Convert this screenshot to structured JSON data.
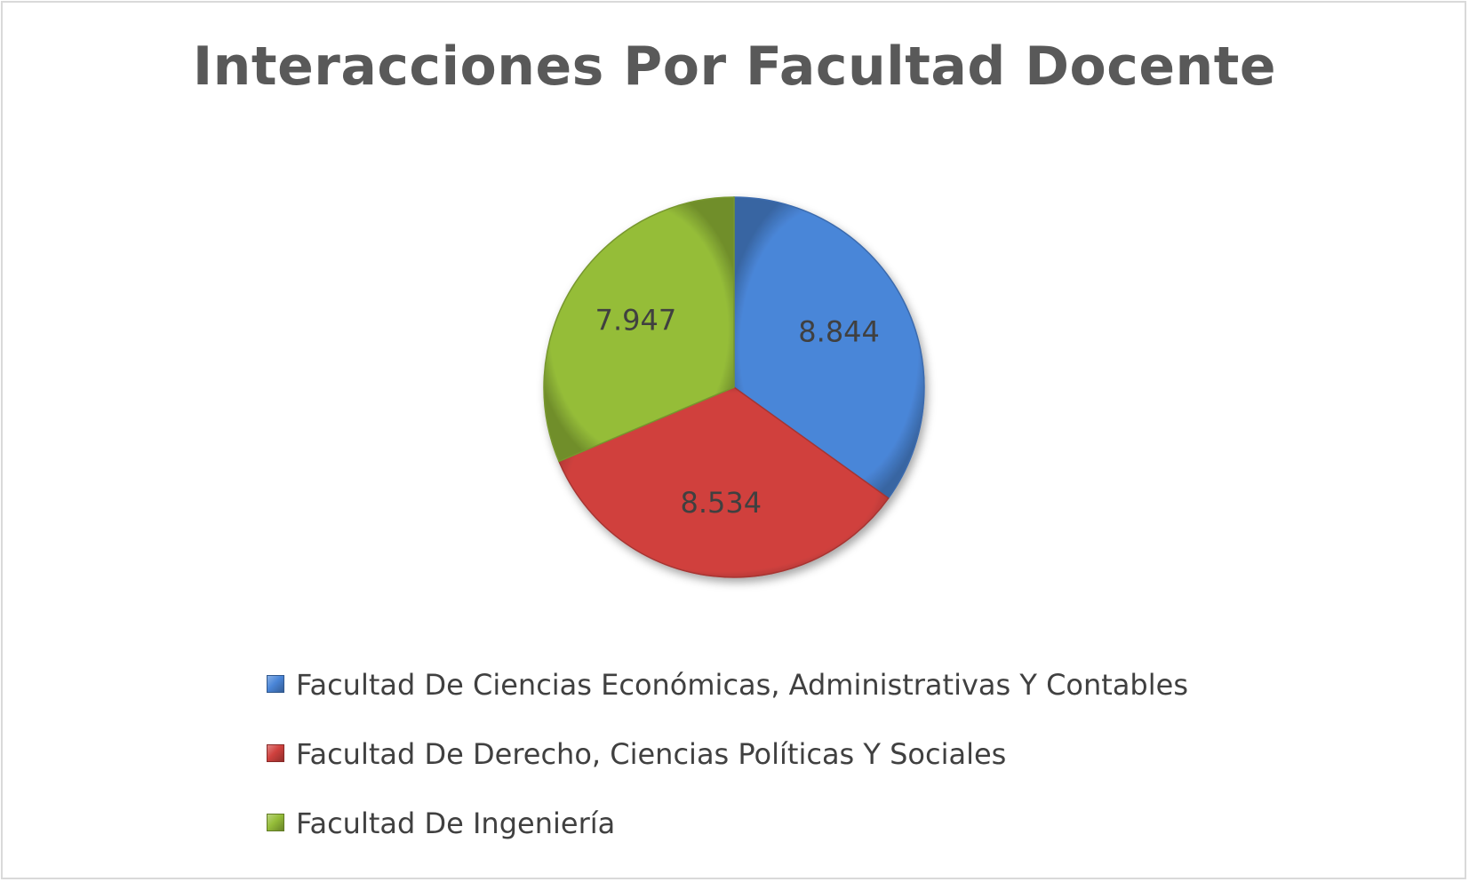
{
  "chart_data": {
    "type": "pie",
    "title": "Interacciones Por Facultad Docente",
    "categories": [
      "Facultad De Ciencias Económicas, Administrativas Y Contables",
      "Facultad De Derecho, Ciencias Políticas Y Sociales",
      "Facultad De Ingeniería"
    ],
    "values": [
      8844,
      8534,
      7947
    ],
    "data_labels": [
      "8.844",
      "8.534",
      "7.947"
    ],
    "colors": [
      "#4a86d8",
      "#d0413e",
      "#95bd39"
    ],
    "legend_position": "bottom"
  }
}
